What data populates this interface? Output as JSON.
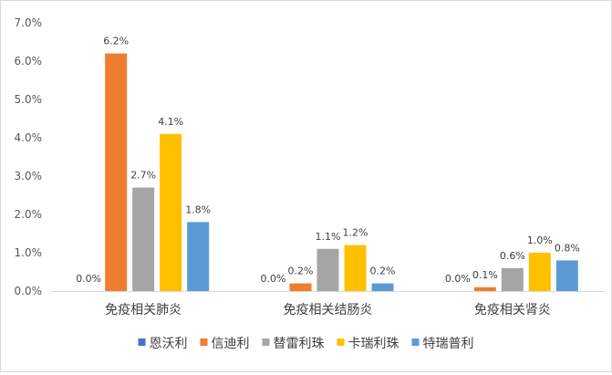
{
  "chart_data": {
    "type": "bar",
    "title": "",
    "xlabel": "",
    "ylabel": "",
    "ylim": [
      0,
      7
    ],
    "y_ticks": [
      "0.0%",
      "1.0%",
      "2.0%",
      "3.0%",
      "4.0%",
      "5.0%",
      "6.0%",
      "7.0%"
    ],
    "categories": [
      "免疫相关肺炎",
      "免疫相关结肠炎",
      "免疫相关肾炎"
    ],
    "series": [
      {
        "name": "恩沃利",
        "color": "#4472c4",
        "values": [
          0.0,
          0.0,
          0.0
        ],
        "labels": [
          "0.0%",
          "0.0%",
          "0.0%"
        ]
      },
      {
        "name": "信迪利",
        "color": "#ed7d31",
        "values": [
          6.2,
          0.2,
          0.1
        ],
        "labels": [
          "6.2%",
          "0.2%",
          "0.1%"
        ]
      },
      {
        "name": "替雷利珠",
        "color": "#a5a5a5",
        "values": [
          2.7,
          1.1,
          0.6
        ],
        "labels": [
          "2.7%",
          "1.1%",
          "0.6%"
        ]
      },
      {
        "name": "卡瑞利珠",
        "color": "#ffc000",
        "values": [
          4.1,
          1.2,
          1.0
        ],
        "labels": [
          "4.1%",
          "1.2%",
          "1.0%"
        ]
      },
      {
        "name": "特瑞普利",
        "color": "#5b9bd5",
        "values": [
          1.8,
          0.2,
          0.8
        ],
        "labels": [
          "1.8%",
          "0.2%",
          "0.8%"
        ]
      }
    ],
    "gridlines": false,
    "legend_position": "bottom"
  }
}
